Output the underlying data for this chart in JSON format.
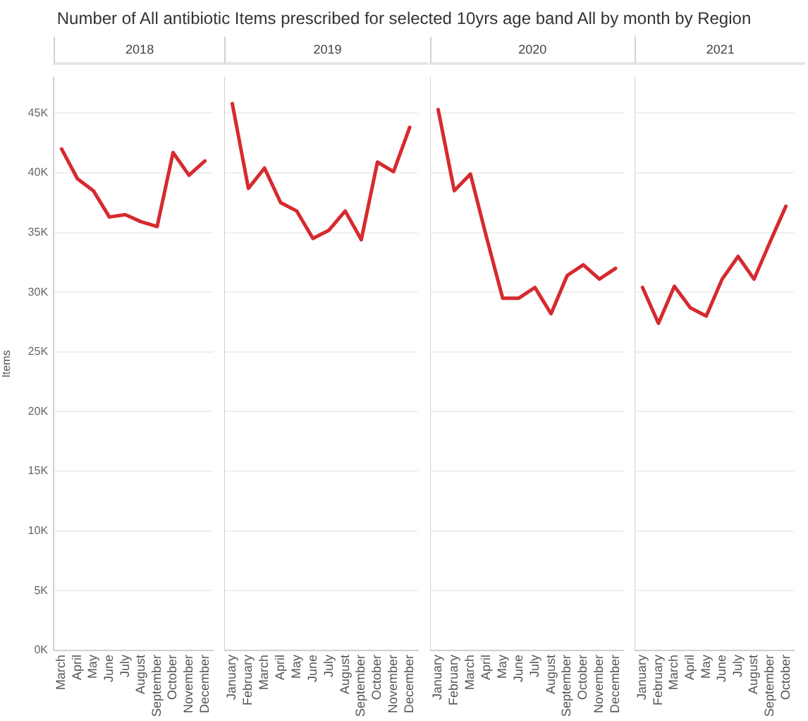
{
  "chart_data": [
    {
      "type": "line",
      "title": "Number of All antibiotic Items prescribed for selected 10yrs age band All by month by Region",
      "subtitle": "2018",
      "ylabel": "Items",
      "categories": [
        "March",
        "April",
        "May",
        "June",
        "July",
        "August",
        "September",
        "October",
        "November",
        "December"
      ],
      "series": [
        {
          "color": "#d62a2f",
          "values": [
            42000,
            39500,
            38500,
            36300,
            36500,
            35900,
            35500,
            41700,
            39800,
            41000
          ]
        }
      ],
      "ylim": [
        0,
        48000
      ],
      "yticks": [
        {
          "value": 0,
          "label": "0K"
        },
        {
          "value": 5000,
          "label": "5K"
        },
        {
          "value": 10000,
          "label": "10K"
        },
        {
          "value": 15000,
          "label": "15K"
        },
        {
          "value": 20000,
          "label": "20K"
        },
        {
          "value": 25000,
          "label": "25K"
        },
        {
          "value": 30000,
          "label": "30K"
        },
        {
          "value": 35000,
          "label": "35K"
        },
        {
          "value": 40000,
          "label": "40K"
        },
        {
          "value": 45000,
          "label": "45K"
        }
      ],
      "grid": "y",
      "legend": false,
      "marker": "none",
      "line_style": "solid"
    },
    {
      "type": "line",
      "subtitle": "2019",
      "categories": [
        "January",
        "February",
        "March",
        "April",
        "May",
        "June",
        "July",
        "August",
        "September",
        "October",
        "November",
        "December"
      ],
      "series": [
        {
          "color": "#d62a2f",
          "values": [
            45800,
            38700,
            40400,
            37500,
            36800,
            34500,
            35200,
            36800,
            34400,
            40900,
            40100,
            43800
          ]
        }
      ],
      "ylim": [
        0,
        48000
      ],
      "yticks": [
        0,
        5000,
        10000,
        15000,
        20000,
        25000,
        30000,
        35000,
        40000,
        45000
      ],
      "grid": "y",
      "legend": false,
      "marker": "none",
      "line_style": "solid",
      "tick_labels": "x"
    },
    {
      "type": "line",
      "subtitle": "2020",
      "categories": [
        "January",
        "February",
        "March",
        "April",
        "May",
        "June",
        "July",
        "August",
        "September",
        "October",
        "November",
        "December"
      ],
      "series": [
        {
          "color": "#d62a2f",
          "values": [
            45300,
            38500,
            39900,
            34600,
            29500,
            29500,
            30400,
            28200,
            31400,
            32300,
            31100,
            32000
          ]
        }
      ],
      "ylim": [
        0,
        48000
      ],
      "yticks": [
        0,
        5000,
        10000,
        15000,
        20000,
        25000,
        30000,
        35000,
        40000,
        45000
      ],
      "grid": "y",
      "legend": false,
      "marker": "none",
      "line_style": "solid",
      "tick_labels": "x"
    },
    {
      "type": "line",
      "subtitle": "2021",
      "categories": [
        "January",
        "February",
        "March",
        "April",
        "May",
        "June",
        "July",
        "August",
        "September",
        "October"
      ],
      "series": [
        {
          "color": "#d62a2f",
          "values": [
            30400,
            27400,
            30500,
            28700,
            28000,
            31100,
            33000,
            31100,
            34200,
            37200
          ]
        }
      ],
      "ylim": [
        0,
        48000
      ],
      "yticks": [
        0,
        5000,
        10000,
        15000,
        20000,
        25000,
        30000,
        35000,
        40000,
        45000
      ],
      "grid": "y",
      "legend": false,
      "marker": "none",
      "line_style": "solid",
      "tick_labels": "x"
    }
  ]
}
